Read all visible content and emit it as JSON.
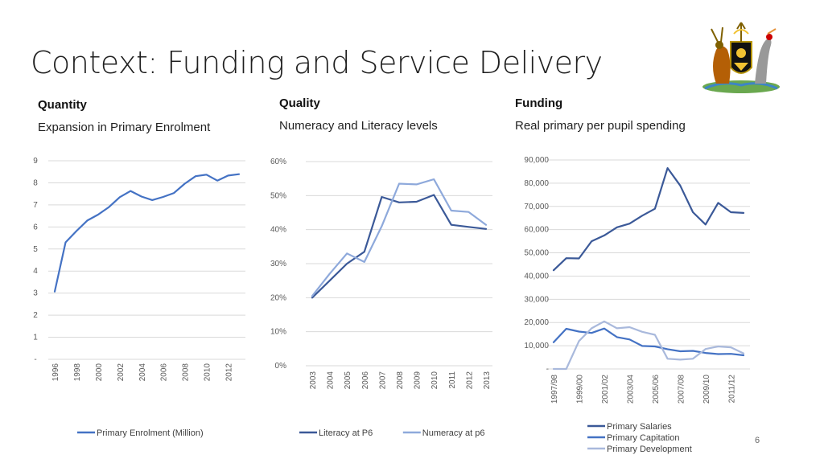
{
  "slide": {
    "title": "Context: Funding and Service Delivery",
    "page_number": "6"
  },
  "columns": [
    {
      "heading": "Quantity",
      "subheading": "Expansion in Primary Enrolment"
    },
    {
      "heading": "Quality",
      "subheading": "Numeracy and Literacy levels"
    },
    {
      "heading": "Funding",
      "subheading": "Real primary per pupil spending"
    }
  ],
  "colors": {
    "dark_blue": "#4472C4",
    "navy": "#3B5998",
    "light_blue": "#8EA9DB",
    "pale_blue": "#A9B9DC",
    "grid": "#D9D9D9",
    "tick_text": "#595959"
  },
  "chart_data": [
    {
      "id": "enrolment",
      "type": "line",
      "title": "",
      "xlabel": "",
      "ylabel": "",
      "ylim": [
        0,
        9
      ],
      "yticks": [
        0,
        1,
        2,
        3,
        4,
        5,
        6,
        7,
        8,
        9
      ],
      "ytick_labels": [
        "-",
        "1",
        "2",
        "3",
        "4",
        "5",
        "6",
        "7",
        "8",
        "9"
      ],
      "x": [
        1996,
        1997,
        1998,
        1999,
        2000,
        2001,
        2002,
        2003,
        2004,
        2005,
        2006,
        2007,
        2008,
        2009,
        2010,
        2011,
        2012,
        2013
      ],
      "x_tick_labels": [
        "1996",
        "1998",
        "2000",
        "2002",
        "2004",
        "2006",
        "2008",
        "2010",
        "2012"
      ],
      "series": [
        {
          "name": "Primary Enrolment (Million)",
          "color": "#4472C4",
          "values": [
            3.07,
            5.3,
            5.81,
            6.29,
            6.56,
            6.9,
            7.35,
            7.63,
            7.38,
            7.22,
            7.36,
            7.54,
            7.96,
            8.3,
            8.37,
            8.1,
            8.33,
            8.39
          ]
        }
      ],
      "legend": "bottom"
    },
    {
      "id": "quality",
      "type": "line",
      "title": "",
      "xlabel": "",
      "ylabel": "",
      "ylim": [
        0,
        60
      ],
      "yticks": [
        0,
        10,
        20,
        30,
        40,
        50,
        60
      ],
      "ytick_labels": [
        "0%",
        "10%",
        "20%",
        "30%",
        "40%",
        "50%",
        "60%"
      ],
      "x": [
        2003,
        2004,
        2005,
        2006,
        2007,
        2008,
        2009,
        2010,
        2011,
        2012,
        2013
      ],
      "x_tick_labels": [
        "2003",
        "2004",
        "2005",
        "2006",
        "2007",
        "2008",
        "2009",
        "2010",
        "2011",
        "2012",
        "2013"
      ],
      "series": [
        {
          "name": "Literacy at P6",
          "color": "#3B5998",
          "values": [
            20.0,
            25.0,
            30.0,
            33.5,
            49.6,
            48.0,
            48.2,
            50.2,
            41.4,
            40.8,
            40.2
          ]
        },
        {
          "name": "Numeracy at p6",
          "color": "#8EA9DB",
          "values": [
            20.5,
            27.0,
            33.0,
            30.5,
            41.0,
            53.5,
            53.3,
            54.8,
            45.6,
            45.2,
            41.4
          ]
        }
      ],
      "legend": "bottom"
    },
    {
      "id": "funding",
      "type": "line",
      "title": "",
      "xlabel": "",
      "ylabel": "",
      "ylim": [
        0,
        90000
      ],
      "yticks": [
        0,
        10000,
        20000,
        30000,
        40000,
        50000,
        60000,
        70000,
        80000,
        90000
      ],
      "ytick_labels": [
        "-",
        "10,000",
        "20,000",
        "30,000",
        "40,000",
        "50,000",
        "60,000",
        "70,000",
        "80,000",
        "90,000"
      ],
      "x": [
        "1997/98",
        "1998/99",
        "1999/00",
        "2000/01",
        "2001/02",
        "2002/03",
        "2003/04",
        "2004/05",
        "2005/06",
        "2006/07",
        "2007/08",
        "2008/09",
        "2009/10",
        "2010/11",
        "2011/12",
        "2012/13"
      ],
      "x_tick_labels": [
        "1997/98",
        "1999/00",
        "2001/02",
        "2003/04",
        "2005/06",
        "2007/08",
        "2009/10",
        "2011/12"
      ],
      "series": [
        {
          "name": "Primary Salaries",
          "color": "#3B5998",
          "values": [
            42500,
            47700,
            47600,
            55000,
            57500,
            61000,
            62600,
            66000,
            69000,
            86500,
            79000,
            67500,
            62200,
            71500,
            67500,
            67200
          ]
        },
        {
          "name": "Primary Capitation",
          "color": "#4472C4",
          "values": [
            11500,
            17300,
            16100,
            15500,
            17400,
            13700,
            12700,
            9900,
            9700,
            8500,
            7600,
            7800,
            6900,
            6400,
            6500,
            5900
          ]
        },
        {
          "name": "Primary Development",
          "color": "#A9B9DC",
          "values": [
            0,
            0,
            12000,
            17500,
            20500,
            17500,
            18000,
            16000,
            14700,
            4400,
            4000,
            4400,
            8600,
            9700,
            9300,
            6700
          ]
        }
      ],
      "legend": "bottom-right"
    }
  ]
}
